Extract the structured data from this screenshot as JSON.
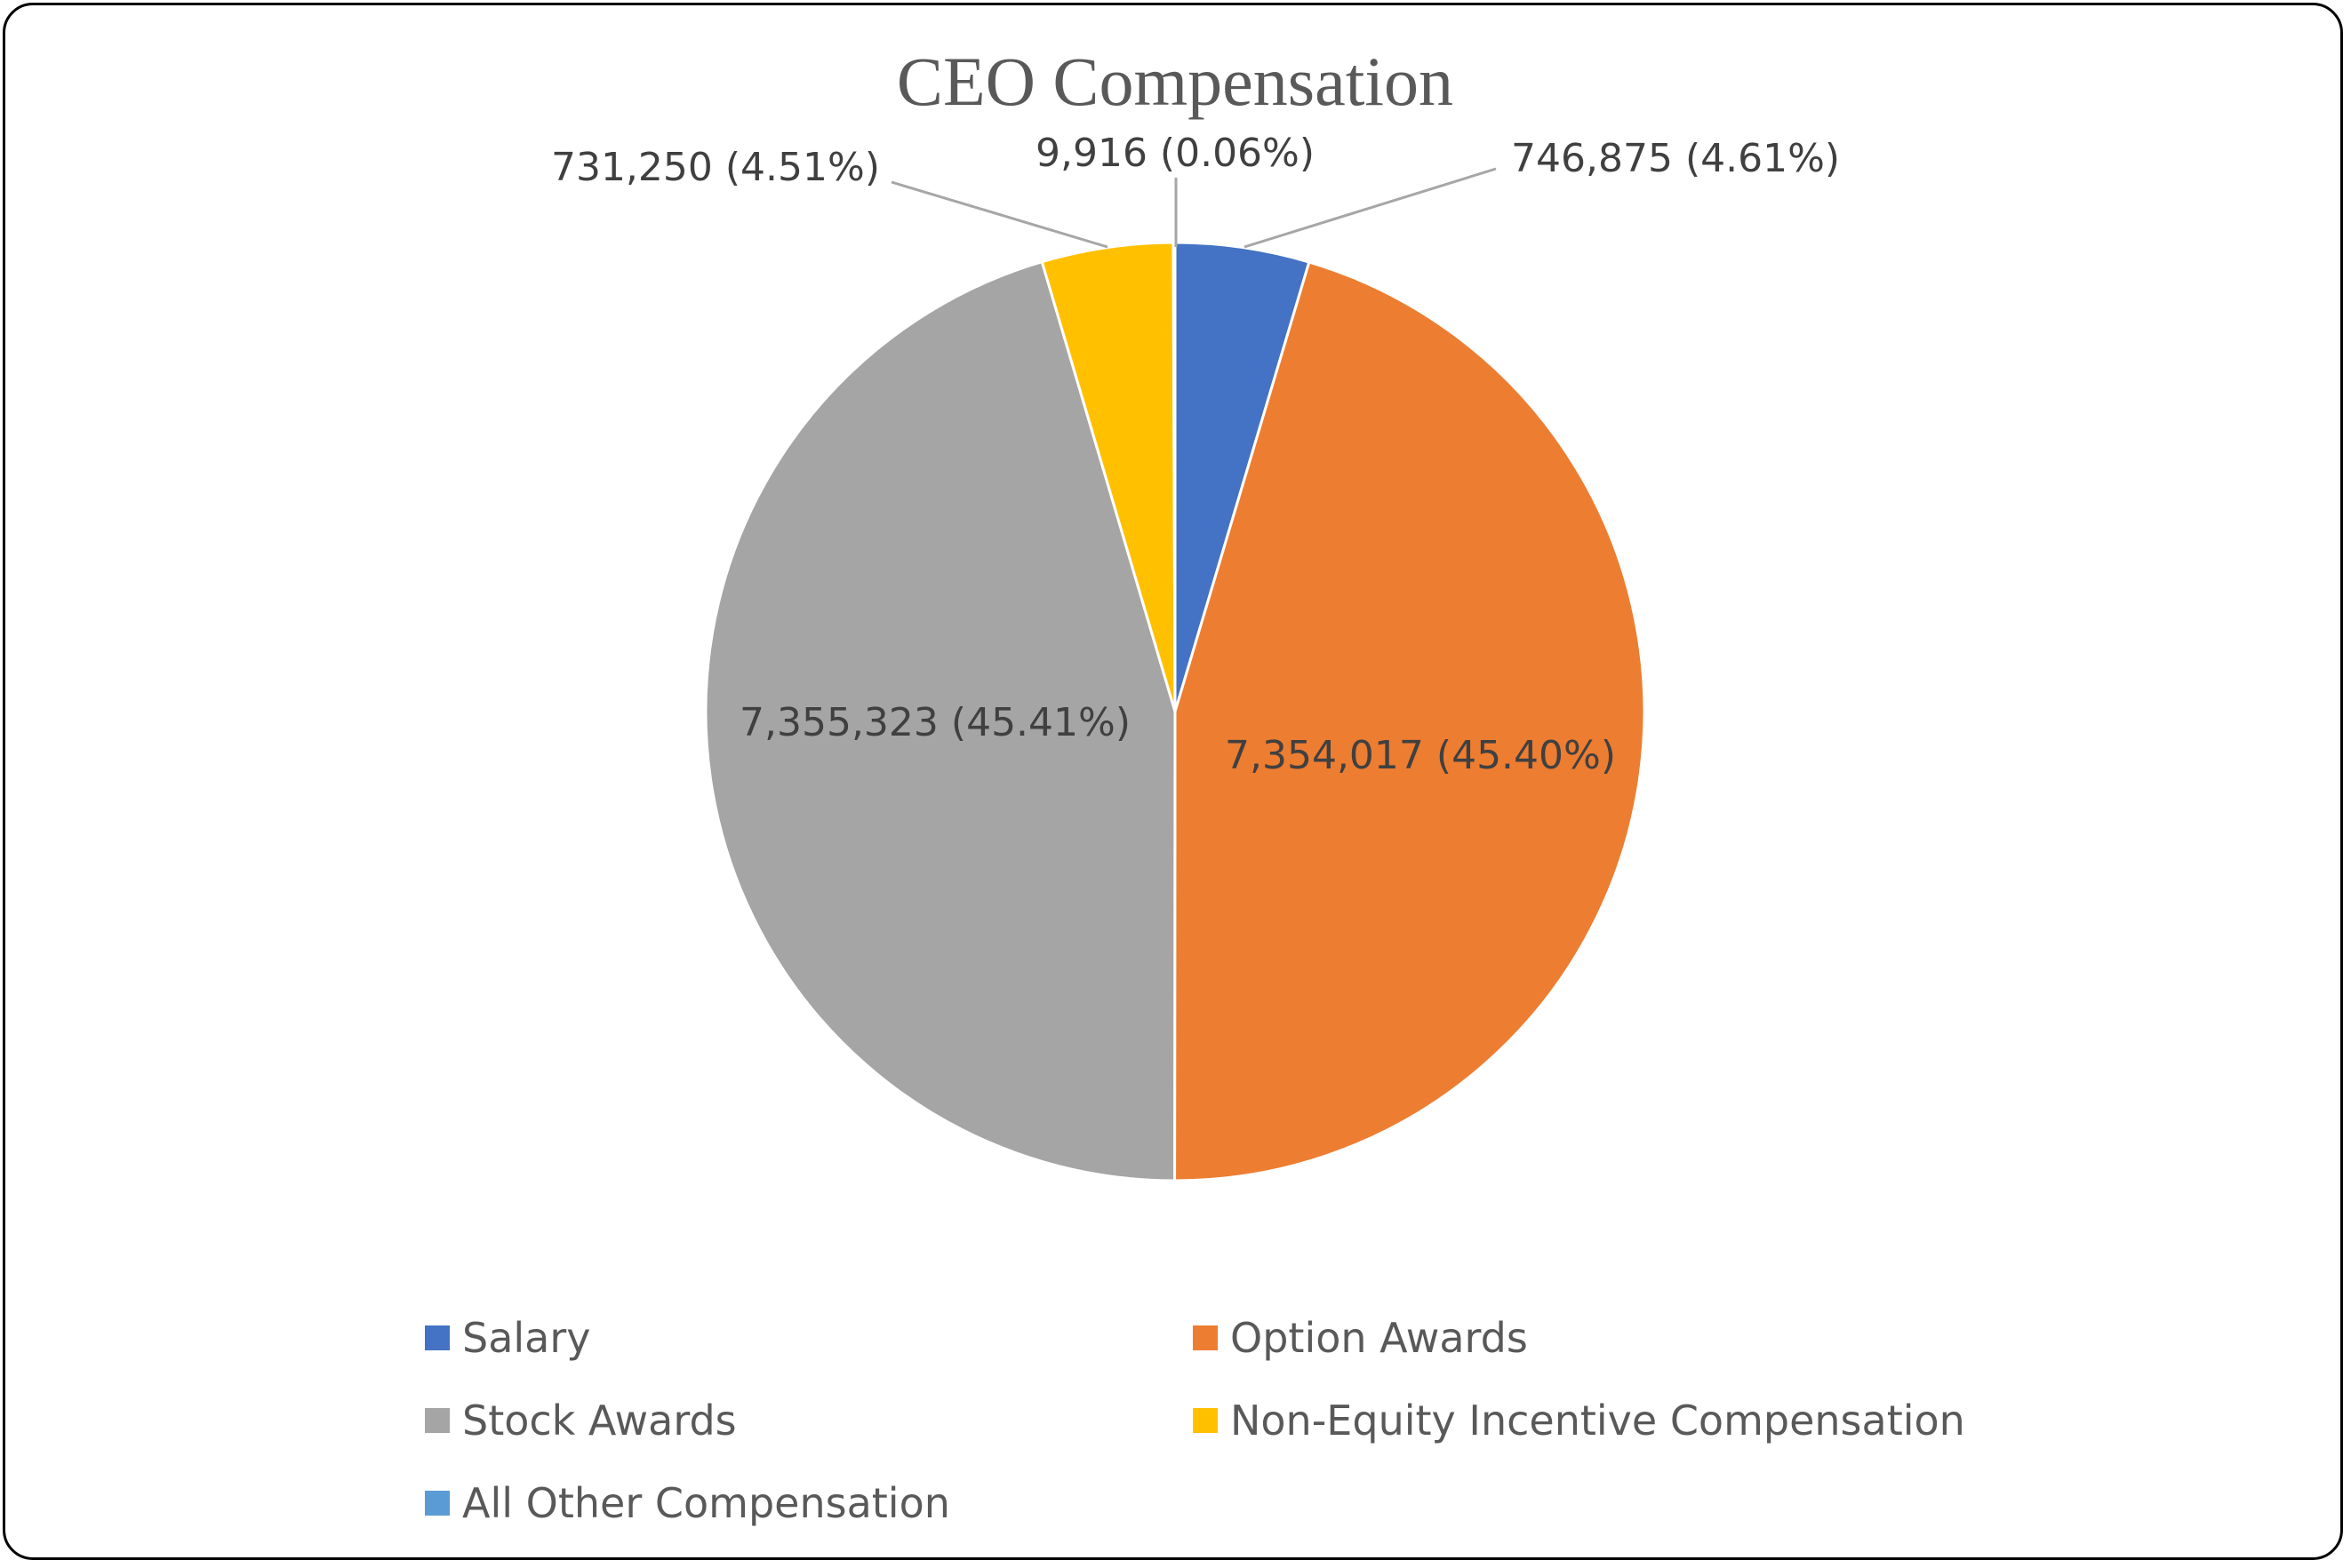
{
  "chart_data": {
    "type": "pie",
    "title": "CEO Compensation",
    "slices": [
      {
        "name": "Salary",
        "value": 746875,
        "label": "746,875 (4.61%)",
        "color": "#4472C4"
      },
      {
        "name": "Option Awards",
        "value": 7354017,
        "label": "7,354,017 (45.40%)",
        "color": "#ED7D31"
      },
      {
        "name": "Stock Awards",
        "value": 7355323,
        "label": "7,355,323 (45.41%)",
        "color": "#A5A5A5"
      },
      {
        "name": "Non-Equity Incentive Compensation",
        "value": 731250,
        "label": "731,250 (4.51%)",
        "color": "#FFC000"
      },
      {
        "name": "All Other Compensation",
        "value": 9916,
        "label": "9,916 (0.06%)",
        "color": "#5B9BD5"
      }
    ],
    "start_angle": "12 o'clock",
    "direction": "clockwise",
    "legend_position": "bottom"
  }
}
